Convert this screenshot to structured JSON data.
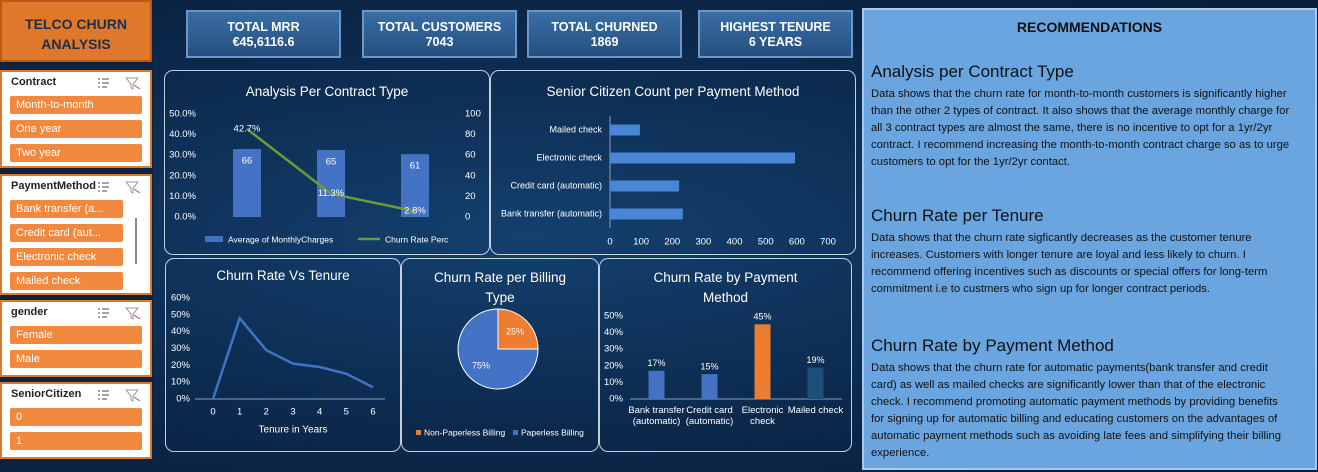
{
  "sidebar": {
    "title": "TELCO CHURN ANALYSIS",
    "slicers": [
      {
        "title": "Contract",
        "items": [
          "Month-to-month",
          "One year",
          "Two year"
        ]
      },
      {
        "title": "PaymentMethod",
        "items": [
          "Bank transfer (a...",
          "Credit card (aut...",
          "Electronic check",
          "Mailed check"
        ]
      },
      {
        "title": "gender",
        "items": [
          "Female",
          "Male"
        ]
      },
      {
        "title": "SeniorCitizen",
        "items": [
          "0",
          "1"
        ]
      }
    ]
  },
  "kpis": [
    {
      "label": "TOTAL MRR",
      "value": "€45,6116.6"
    },
    {
      "label": "TOTAL CUSTOMERS",
      "value": "7043"
    },
    {
      "label": "TOTAL CHURNED",
      "value": "1869"
    },
    {
      "label": "HIGHEST TENURE",
      "value": "6 YEARS"
    }
  ],
  "recommendations": {
    "title": "RECOMMENDATIONS",
    "sections": [
      {
        "heading": "Analysis per Contract Type",
        "text": "Data shows that the churn rate for month-to-month customers is significantly higher than the other 2 types of contract. It also shows that the average monthly charge for all 3 contract types are almost the same, there is no incentive to opt for a 1yr/2yr contract. I recommend increasing the month-to-month contract charge so as to urge customers to opt for the 1yr/2yr contact."
      },
      {
        "heading": "Churn Rate per Tenure",
        "text": "Data shows that the churn rate sigficantly decreases  as the customer tenure increases. Customers with longer tenure are loyal and less likely to churn. I recommend offering incentives such as discounts or special offers for long-term commitment i.e to custmers who sign up for longer contract periods."
      },
      {
        "heading": "Churn Rate by Payment Method",
        "text": "Data shows that the churn rate for automatic payments(bank transfer and credit card) as well as mailed checks are significantly lower than that of the electronic check. I recommend promoting automatic payment methods by providing benefits for signing up for automatic billing and educating customers on the advantages of automatic payment methods such as avoiding late fees and simplifying their billing experience."
      }
    ]
  },
  "chart_data": [
    {
      "type": "combo",
      "title": "Analysis Per Contract Type",
      "ylim": [
        0,
        50
      ],
      "yticks": [
        {
          "value": 0,
          "label": "0.0%"
        },
        {
          "value": 10,
          "label": "10.0%"
        },
        {
          "value": 20,
          "label": "20.0%"
        },
        {
          "value": 30,
          "label": "30.0%"
        },
        {
          "value": 40,
          "label": "40.0%"
        },
        {
          "value": 50,
          "label": "50.0%"
        }
      ],
      "y2lim": [
        0,
        100
      ],
      "y2ticks": [
        0,
        20,
        40,
        60,
        80,
        100
      ],
      "series": [
        {
          "name": "Average of MonthlyCharges",
          "kind": "bar",
          "axis": "y2",
          "color": "#4472c4",
          "values": [
            66,
            65,
            61
          ]
        },
        {
          "name": "Churn Rate Perc",
          "kind": "line",
          "color": "#6f9a3a",
          "values": [
            42.7,
            11.3,
            2.8
          ],
          "value_labels": [
            "42.7%",
            "11.3%",
            "2.8%"
          ]
        }
      ]
    },
    {
      "type": "barh",
      "title": "Senior Citizen Count per Payment Method",
      "categories": [
        "Mailed check",
        "Electronic check",
        "Credit card (automatic)",
        "Bank transfer (automatic)"
      ],
      "values": [
        96,
        594,
        222,
        234
      ],
      "color": "#4a86d6",
      "xlim": [
        0,
        700
      ],
      "xticks": [
        0,
        100,
        200,
        300,
        400,
        500,
        600,
        700
      ]
    },
    {
      "type": "line",
      "title": "Churn Rate Vs Tenure",
      "x_label": "Tenure in Years",
      "x": [
        0,
        1,
        2,
        3,
        4,
        5,
        6
      ],
      "values": [
        0,
        48,
        29,
        21,
        19,
        15,
        7
      ],
      "color": "#4472c4",
      "xlim": [
        0,
        6
      ],
      "xticks": [
        0,
        1,
        2,
        3,
        4,
        5,
        6
      ],
      "ylim": [
        0,
        60
      ],
      "yticks": [
        {
          "value": 0,
          "label": "0%"
        },
        {
          "value": 10,
          "label": "10%"
        },
        {
          "value": 20,
          "label": "20%"
        },
        {
          "value": 30,
          "label": "30%"
        },
        {
          "value": 40,
          "label": "40%"
        },
        {
          "value": 50,
          "label": "50%"
        },
        {
          "value": 60,
          "label": "60%"
        }
      ]
    },
    {
      "type": "pie",
      "title": "Churn Rate per Billing Type",
      "categories": [
        "Non-Paperless Billing",
        "Paperless Billing"
      ],
      "values": [
        25,
        75
      ],
      "value_labels": [
        "25%",
        "75%"
      ],
      "colors": [
        "#ed7d31",
        "#4472c4"
      ]
    },
    {
      "type": "bar",
      "title": "Churn Rate by Payment Method",
      "categories": [
        "Bank transfer (automatic)",
        "Credit card (automatic)",
        "Electronic check",
        "Mailed check"
      ],
      "values": [
        17,
        15,
        45,
        19
      ],
      "value_labels": [
        "17%",
        "15%",
        "45%",
        "19%"
      ],
      "colors": [
        "#4472c4",
        "#4472c4",
        "#ed7d31",
        "#1f4e79"
      ],
      "ylim": [
        0,
        50
      ],
      "yticks": [
        {
          "value": 0,
          "label": "0%"
        },
        {
          "value": 10,
          "label": "10%"
        },
        {
          "value": 20,
          "label": "20%"
        },
        {
          "value": 30,
          "label": "30%"
        },
        {
          "value": 40,
          "label": "40%"
        },
        {
          "value": 50,
          "label": "50%"
        }
      ]
    }
  ]
}
